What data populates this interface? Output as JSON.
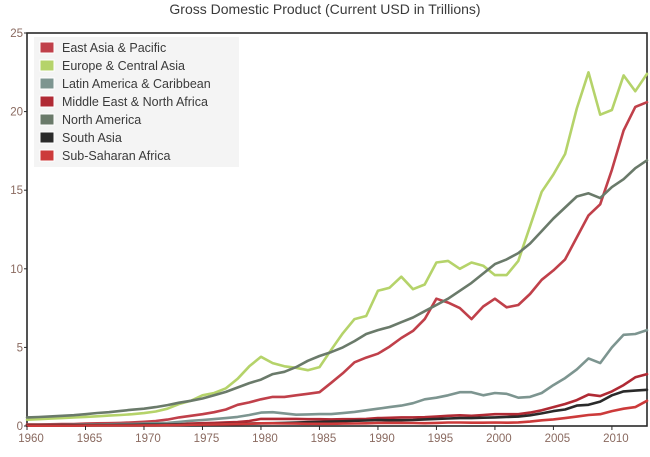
{
  "chart_data": {
    "type": "line",
    "title": "Gross Domestic Product (Current USD in Trillions)",
    "xlabel": "",
    "ylabel": "",
    "xlim": [
      1960,
      2013
    ],
    "ylim": [
      0,
      25
    ],
    "x_ticks": [
      1960,
      1965,
      1970,
      1975,
      1980,
      1985,
      1990,
      1995,
      2000,
      2005,
      2010
    ],
    "y_ticks": [
      0,
      5,
      10,
      15,
      20,
      25
    ],
    "grid": false,
    "legend_position": "top-left",
    "x": [
      1960,
      1961,
      1962,
      1963,
      1964,
      1965,
      1966,
      1967,
      1968,
      1969,
      1970,
      1971,
      1972,
      1973,
      1974,
      1975,
      1976,
      1977,
      1978,
      1979,
      1980,
      1981,
      1982,
      1983,
      1984,
      1985,
      1986,
      1987,
      1988,
      1989,
      1990,
      1991,
      1992,
      1993,
      1994,
      1995,
      1996,
      1997,
      1998,
      1999,
      2000,
      2001,
      2002,
      2003,
      2004,
      2005,
      2006,
      2007,
      2008,
      2009,
      2010,
      2011,
      2012,
      2013
    ],
    "series": [
      {
        "name": "East Asia & Pacific",
        "color": "#c0404a",
        "values": [
          0.1,
          0.1,
          0.11,
          0.12,
          0.13,
          0.15,
          0.17,
          0.18,
          0.2,
          0.23,
          0.27,
          0.32,
          0.41,
          0.55,
          0.65,
          0.75,
          0.88,
          1.05,
          1.35,
          1.5,
          1.7,
          1.85,
          1.85,
          1.95,
          2.05,
          2.15,
          2.75,
          3.35,
          4.05,
          4.35,
          4.6,
          5.05,
          5.6,
          6.05,
          6.8,
          8.1,
          7.85,
          7.5,
          6.8,
          7.6,
          8.1,
          7.55,
          7.7,
          8.4,
          9.3,
          9.9,
          10.6,
          12.0,
          13.4,
          14.1,
          16.3,
          18.8,
          20.3,
          20.6
        ]
      },
      {
        "name": "Europe & Central Asia",
        "color": "#b5d36a",
        "values": [
          0.4,
          0.43,
          0.47,
          0.5,
          0.54,
          0.58,
          0.62,
          0.66,
          0.7,
          0.75,
          0.82,
          0.92,
          1.1,
          1.4,
          1.6,
          1.95,
          2.1,
          2.4,
          3.0,
          3.8,
          4.4,
          4.0,
          3.8,
          3.7,
          3.55,
          3.75,
          4.85,
          5.9,
          6.8,
          7.0,
          8.6,
          8.8,
          9.5,
          8.7,
          9.0,
          10.4,
          10.5,
          10.0,
          10.4,
          10.2,
          9.6,
          9.6,
          10.5,
          12.7,
          14.9,
          16.0,
          17.3,
          20.2,
          22.5,
          19.8,
          20.1,
          22.3,
          21.3,
          22.4
        ]
      },
      {
        "name": "Latin America & Caribbean",
        "color": "#7d9590",
        "values": [
          0.05,
          0.06,
          0.06,
          0.07,
          0.08,
          0.09,
          0.1,
          0.11,
          0.12,
          0.13,
          0.15,
          0.17,
          0.2,
          0.26,
          0.33,
          0.38,
          0.44,
          0.5,
          0.58,
          0.7,
          0.85,
          0.88,
          0.8,
          0.72,
          0.74,
          0.76,
          0.76,
          0.82,
          0.9,
          1.0,
          1.1,
          1.2,
          1.3,
          1.45,
          1.7,
          1.8,
          1.95,
          2.15,
          2.15,
          1.95,
          2.1,
          2.05,
          1.8,
          1.85,
          2.1,
          2.6,
          3.05,
          3.6,
          4.3,
          4.0,
          5.0,
          5.8,
          5.85,
          6.1
        ]
      },
      {
        "name": "Middle East & North Africa",
        "color": "#b02a34",
        "values": [
          0.03,
          0.03,
          0.03,
          0.04,
          0.04,
          0.04,
          0.05,
          0.05,
          0.05,
          0.06,
          0.06,
          0.07,
          0.08,
          0.1,
          0.15,
          0.18,
          0.2,
          0.23,
          0.25,
          0.32,
          0.45,
          0.45,
          0.45,
          0.45,
          0.43,
          0.43,
          0.42,
          0.43,
          0.43,
          0.45,
          0.5,
          0.52,
          0.55,
          0.55,
          0.56,
          0.6,
          0.65,
          0.68,
          0.65,
          0.7,
          0.75,
          0.75,
          0.75,
          0.85,
          1.0,
          1.2,
          1.4,
          1.65,
          2.0,
          1.9,
          2.2,
          2.6,
          3.1,
          3.3
        ]
      },
      {
        "name": "North America",
        "color": "#6a7a6a",
        "values": [
          0.55,
          0.57,
          0.61,
          0.65,
          0.69,
          0.75,
          0.83,
          0.88,
          0.96,
          1.04,
          1.1,
          1.2,
          1.33,
          1.48,
          1.6,
          1.75,
          1.95,
          2.17,
          2.45,
          2.73,
          2.95,
          3.3,
          3.45,
          3.75,
          4.15,
          4.45,
          4.7,
          5.0,
          5.4,
          5.85,
          6.1,
          6.3,
          6.6,
          6.9,
          7.3,
          7.7,
          8.1,
          8.6,
          9.1,
          9.7,
          10.3,
          10.6,
          11.0,
          11.6,
          12.4,
          13.2,
          13.9,
          14.6,
          14.8,
          14.5,
          15.2,
          15.7,
          16.4,
          16.9
        ]
      },
      {
        "name": "South Asia",
        "color": "#2a2a2a",
        "values": [
          0.05,
          0.05,
          0.05,
          0.06,
          0.06,
          0.06,
          0.06,
          0.06,
          0.07,
          0.07,
          0.08,
          0.08,
          0.08,
          0.09,
          0.1,
          0.1,
          0.11,
          0.12,
          0.13,
          0.15,
          0.17,
          0.18,
          0.2,
          0.22,
          0.24,
          0.26,
          0.28,
          0.3,
          0.33,
          0.35,
          0.38,
          0.36,
          0.37,
          0.38,
          0.42,
          0.45,
          0.48,
          0.5,
          0.5,
          0.53,
          0.55,
          0.57,
          0.6,
          0.68,
          0.8,
          0.95,
          1.05,
          1.3,
          1.35,
          1.55,
          1.95,
          2.2,
          2.25,
          2.3
        ]
      },
      {
        "name": "Sub-Saharan Africa",
        "color": "#cc3a3a",
        "values": [
          0.02,
          0.02,
          0.02,
          0.02,
          0.02,
          0.03,
          0.03,
          0.03,
          0.03,
          0.03,
          0.04,
          0.04,
          0.05,
          0.06,
          0.08,
          0.09,
          0.1,
          0.11,
          0.12,
          0.14,
          0.17,
          0.17,
          0.16,
          0.15,
          0.14,
          0.14,
          0.14,
          0.15,
          0.16,
          0.17,
          0.2,
          0.2,
          0.2,
          0.19,
          0.18,
          0.2,
          0.22,
          0.22,
          0.21,
          0.21,
          0.22,
          0.21,
          0.23,
          0.28,
          0.36,
          0.42,
          0.5,
          0.6,
          0.7,
          0.75,
          0.95,
          1.1,
          1.2,
          1.6
        ]
      }
    ]
  }
}
